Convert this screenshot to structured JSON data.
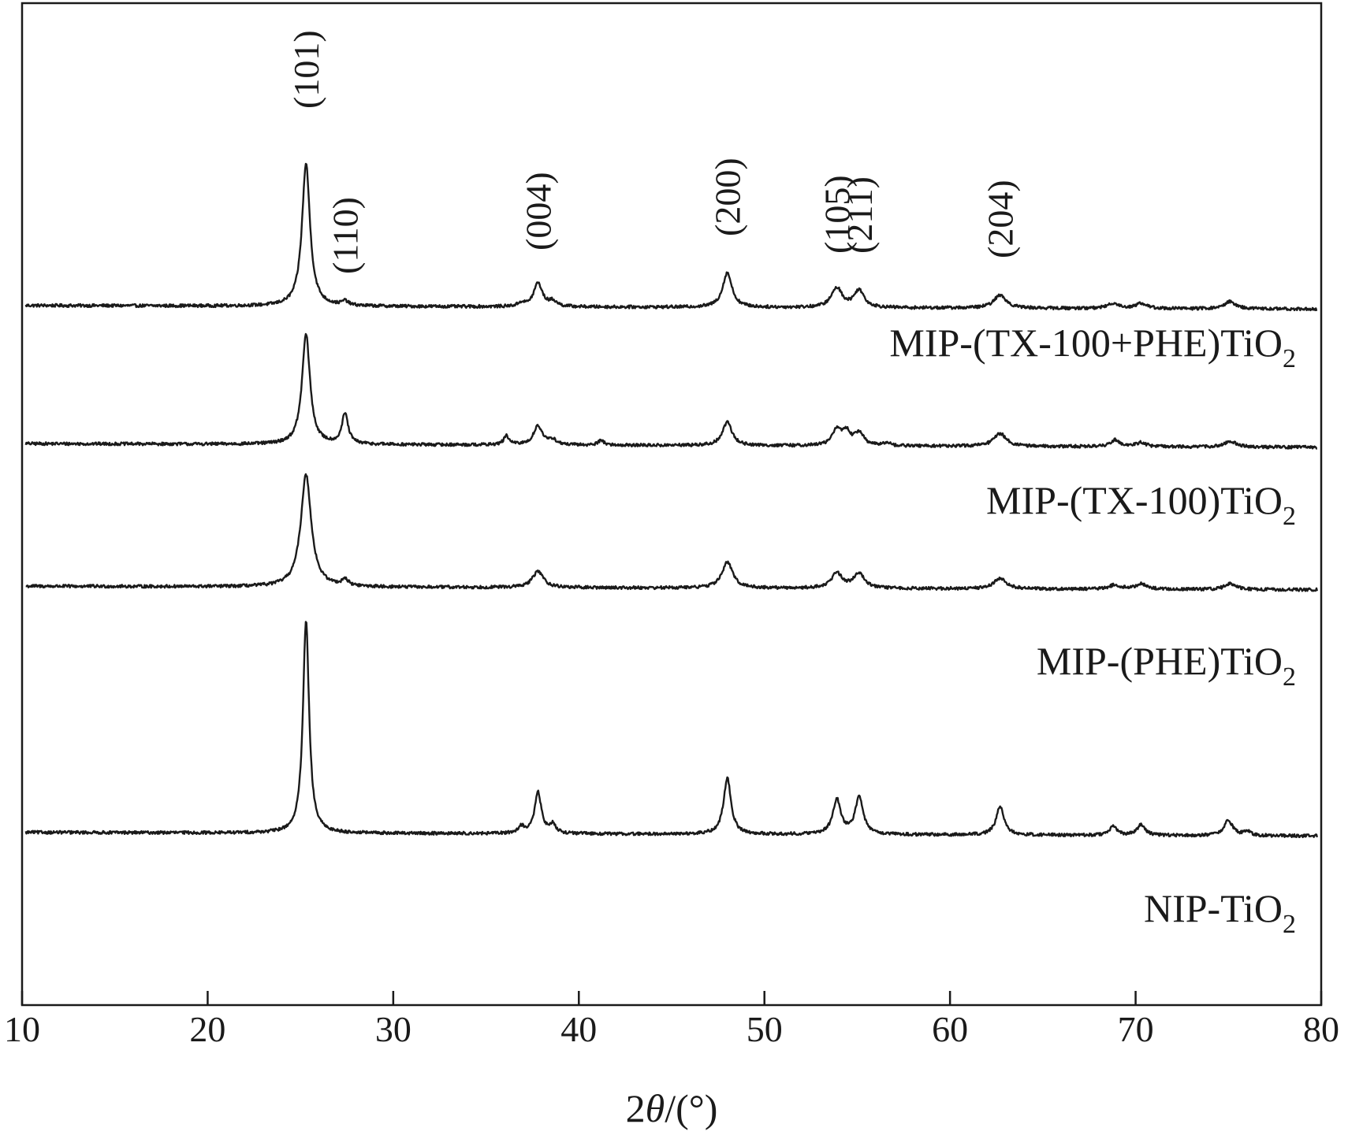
{
  "chart_data": {
    "type": "line",
    "xlabel_prefix": "2",
    "xlabel_theta": "θ",
    "xlabel_suffix": "/(°)",
    "ylabel": "",
    "xlim": [
      10,
      80
    ],
    "x_ticks": [
      10,
      20,
      30,
      40,
      50,
      60,
      70,
      80
    ],
    "y_ticks": [],
    "grid": false,
    "legend": "none",
    "peak_labels": [
      {
        "text": "(101)",
        "x": 25.3
      },
      {
        "text": "(110)",
        "x": 27.4
      },
      {
        "text": "(004)",
        "x": 37.8
      },
      {
        "text": "(200)",
        "x": 48.0
      },
      {
        "text": "(105)",
        "x": 53.9
      },
      {
        "text": "(211)",
        "x": 55.1
      },
      {
        "text": "(204)",
        "x": 62.7
      }
    ],
    "series": [
      {
        "name": "MIP-(TX-100+PHE)TiO",
        "name_subscript": "2",
        "baseline": 4.0,
        "peaks": [
          {
            "x": 25.3,
            "h": 3.3,
            "w": 0.26
          },
          {
            "x": 27.4,
            "h": 0.1,
            "w": 0.2
          },
          {
            "x": 36.9,
            "h": 0.08,
            "w": 0.2
          },
          {
            "x": 37.8,
            "h": 0.55,
            "w": 0.28
          },
          {
            "x": 38.6,
            "h": 0.12,
            "w": 0.25
          },
          {
            "x": 48.0,
            "h": 0.8,
            "w": 0.3
          },
          {
            "x": 53.9,
            "h": 0.45,
            "w": 0.35
          },
          {
            "x": 55.1,
            "h": 0.4,
            "w": 0.32
          },
          {
            "x": 62.7,
            "h": 0.3,
            "w": 0.4
          },
          {
            "x": 68.8,
            "h": 0.12,
            "w": 0.35
          },
          {
            "x": 70.3,
            "h": 0.12,
            "w": 0.35
          },
          {
            "x": 75.1,
            "h": 0.17,
            "w": 0.35
          }
        ]
      },
      {
        "name": "MIP-(TX-100)TiO",
        "name_subscript": "2",
        "baseline": 0.8,
        "peaks": [
          {
            "x": 25.3,
            "h": 2.55,
            "w": 0.26
          },
          {
            "x": 27.4,
            "h": 0.7,
            "w": 0.2
          },
          {
            "x": 36.1,
            "h": 0.2,
            "w": 0.18
          },
          {
            "x": 37.8,
            "h": 0.45,
            "w": 0.28
          },
          {
            "x": 38.6,
            "h": 0.12,
            "w": 0.22
          },
          {
            "x": 41.2,
            "h": 0.12,
            "w": 0.18
          },
          {
            "x": 48.0,
            "h": 0.55,
            "w": 0.3
          },
          {
            "x": 53.9,
            "h": 0.35,
            "w": 0.3
          },
          {
            "x": 54.4,
            "h": 0.3,
            "w": 0.25
          },
          {
            "x": 55.1,
            "h": 0.3,
            "w": 0.3
          },
          {
            "x": 56.6,
            "h": 0.08,
            "w": 0.2
          },
          {
            "x": 62.7,
            "h": 0.3,
            "w": 0.4
          },
          {
            "x": 68.9,
            "h": 0.16,
            "w": 0.3
          },
          {
            "x": 70.3,
            "h": 0.1,
            "w": 0.3
          },
          {
            "x": 75.1,
            "h": 0.14,
            "w": 0.35
          }
        ]
      },
      {
        "name": "MIP-(PHE)TiO",
        "name_subscript": "2",
        "baseline": -2.5,
        "peaks": [
          {
            "x": 25.3,
            "h": 2.6,
            "w": 0.34
          },
          {
            "x": 27.4,
            "h": 0.15,
            "w": 0.2
          },
          {
            "x": 37.8,
            "h": 0.38,
            "w": 0.35
          },
          {
            "x": 48.0,
            "h": 0.6,
            "w": 0.35
          },
          {
            "x": 53.9,
            "h": 0.35,
            "w": 0.35
          },
          {
            "x": 55.1,
            "h": 0.35,
            "w": 0.35
          },
          {
            "x": 62.7,
            "h": 0.25,
            "w": 0.4
          },
          {
            "x": 68.9,
            "h": 0.1,
            "w": 0.35
          },
          {
            "x": 70.3,
            "h": 0.12,
            "w": 0.35
          },
          {
            "x": 75.1,
            "h": 0.14,
            "w": 0.35
          }
        ]
      },
      {
        "name": "NIP-TiO",
        "name_subscript": "2",
        "baseline": -8.2,
        "peaks": [
          {
            "x": 25.3,
            "h": 4.9,
            "w": 0.2
          },
          {
            "x": 36.9,
            "h": 0.15,
            "w": 0.2
          },
          {
            "x": 37.8,
            "h": 0.95,
            "w": 0.22
          },
          {
            "x": 38.6,
            "h": 0.2,
            "w": 0.2
          },
          {
            "x": 48.0,
            "h": 1.3,
            "w": 0.24
          },
          {
            "x": 53.9,
            "h": 0.8,
            "w": 0.26
          },
          {
            "x": 55.1,
            "h": 0.85,
            "w": 0.26
          },
          {
            "x": 62.7,
            "h": 0.65,
            "w": 0.26
          },
          {
            "x": 68.8,
            "h": 0.2,
            "w": 0.25
          },
          {
            "x": 70.3,
            "h": 0.25,
            "w": 0.25
          },
          {
            "x": 75.0,
            "h": 0.35,
            "w": 0.28
          },
          {
            "x": 76.0,
            "h": 0.1,
            "w": 0.22
          }
        ]
      }
    ]
  }
}
